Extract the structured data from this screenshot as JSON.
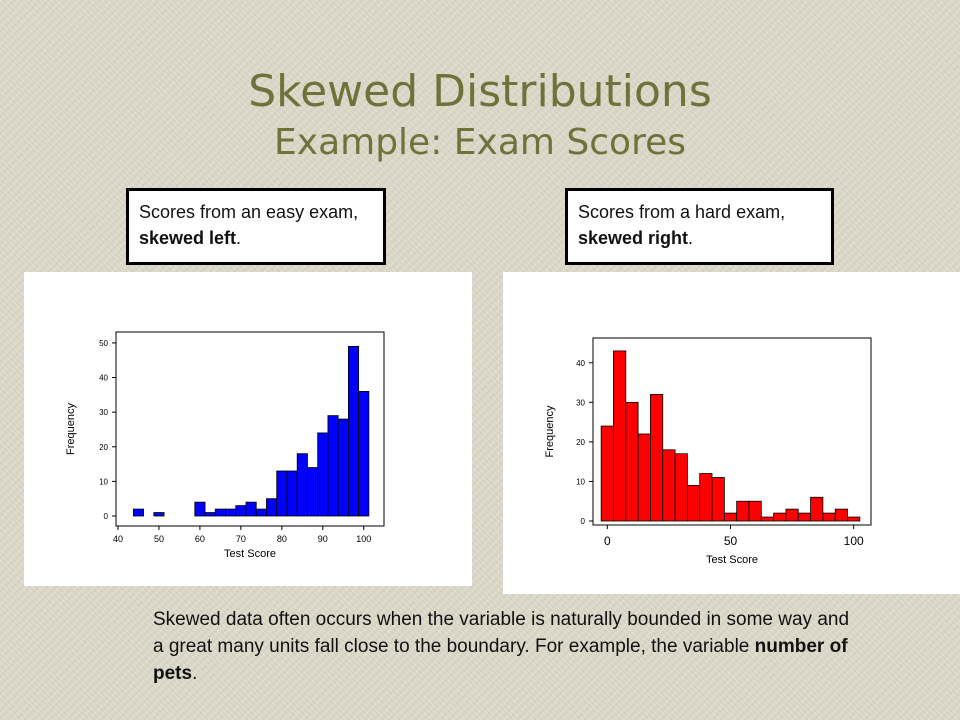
{
  "slide": {
    "title": "Skewed Distributions",
    "subtitle": "Example: Exam Scores"
  },
  "callouts": {
    "left": {
      "text_pre": "Scores from an easy exam, ",
      "text_bold": "skewed left",
      "text_post": "."
    },
    "right": {
      "text_pre": "Scores from a hard exam, ",
      "text_bold": "skewed right",
      "text_post": "."
    }
  },
  "footer": {
    "text_pre": "Skewed data often occurs when the variable is naturally bounded in some way and a great many units fall close to the boundary.    For example, the variable ",
    "text_bold": "number of pets",
    "text_post": "."
  },
  "chart_data": [
    {
      "type": "bar",
      "xlabel": "Test Score",
      "ylabel": "Frequency",
      "color": "#0000ff",
      "bin_width": 2.5,
      "xlim": [
        40,
        102.5
      ],
      "ylim": [
        0,
        52
      ],
      "xticks": [
        40,
        50,
        60,
        70,
        80,
        90,
        100
      ],
      "yticks": [
        0,
        10,
        20,
        30,
        40,
        50
      ],
      "bins": [
        {
          "x": 45,
          "y": 2
        },
        {
          "x": 47.5,
          "y": 0
        },
        {
          "x": 50,
          "y": 1
        },
        {
          "x": 52.5,
          "y": 0
        },
        {
          "x": 55,
          "y": 0
        },
        {
          "x": 57.5,
          "y": 0
        },
        {
          "x": 60,
          "y": 4
        },
        {
          "x": 62.5,
          "y": 1
        },
        {
          "x": 65,
          "y": 2
        },
        {
          "x": 67.5,
          "y": 2
        },
        {
          "x": 70,
          "y": 3
        },
        {
          "x": 72.5,
          "y": 4
        },
        {
          "x": 75,
          "y": 2
        },
        {
          "x": 77.5,
          "y": 5
        },
        {
          "x": 80,
          "y": 13
        },
        {
          "x": 82.5,
          "y": 13
        },
        {
          "x": 85,
          "y": 18
        },
        {
          "x": 87.5,
          "y": 14
        },
        {
          "x": 90,
          "y": 24
        },
        {
          "x": 92.5,
          "y": 29
        },
        {
          "x": 95,
          "y": 28
        },
        {
          "x": 97.5,
          "y": 49
        },
        {
          "x": 100,
          "y": 36
        }
      ]
    },
    {
      "type": "bar",
      "xlabel": "Test Score",
      "ylabel": "Frequency",
      "color": "#ff0000",
      "bin_width": 5,
      "xlim": [
        -5,
        105
      ],
      "ylim": [
        0,
        45
      ],
      "xticks": [
        0,
        50,
        100
      ],
      "yticks": [
        0,
        10,
        20,
        30,
        40
      ],
      "bins": [
        {
          "x": 0,
          "y": 24
        },
        {
          "x": 5,
          "y": 43
        },
        {
          "x": 10,
          "y": 30
        },
        {
          "x": 15,
          "y": 22
        },
        {
          "x": 20,
          "y": 32
        },
        {
          "x": 25,
          "y": 18
        },
        {
          "x": 30,
          "y": 17
        },
        {
          "x": 35,
          "y": 9
        },
        {
          "x": 40,
          "y": 12
        },
        {
          "x": 45,
          "y": 11
        },
        {
          "x": 50,
          "y": 2
        },
        {
          "x": 55,
          "y": 5
        },
        {
          "x": 60,
          "y": 5
        },
        {
          "x": 65,
          "y": 1
        },
        {
          "x": 70,
          "y": 2
        },
        {
          "x": 75,
          "y": 3
        },
        {
          "x": 80,
          "y": 2
        },
        {
          "x": 85,
          "y": 6
        },
        {
          "x": 90,
          "y": 2
        },
        {
          "x": 95,
          "y": 3
        },
        {
          "x": 100,
          "y": 1
        }
      ]
    }
  ]
}
